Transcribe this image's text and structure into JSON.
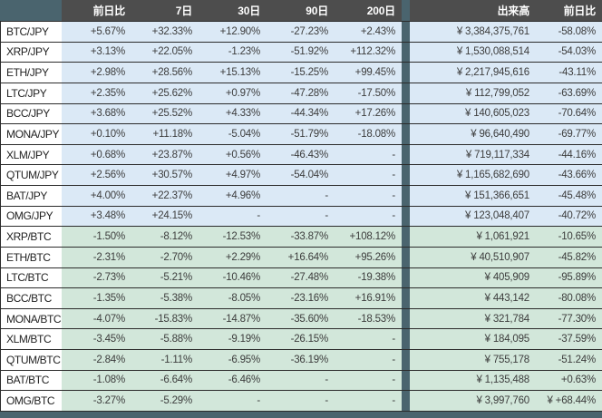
{
  "colors": {
    "header_bg": "#4d4d4d",
    "accent_teal": "#4a646e",
    "jpy_row_bg": "#dbe9f6",
    "btc_row_bg": "#d2e7da",
    "pair_cell_bg": "#ffffff",
    "row_border": "#2b2b2b",
    "header_text": "#ffffff",
    "value_text": "#3c3c3c"
  },
  "table": {
    "columns": [
      "",
      "前日比",
      "7日",
      "30日",
      "90日",
      "200日",
      "出来高",
      "前日比"
    ],
    "rows": [
      {
        "pair": "BTC/JPY",
        "group": "jpy",
        "cells": [
          "+5.67%",
          "+32.33%",
          "+12.90%",
          "-27.23%",
          "+2.43%",
          "¥ 3,384,375,761",
          "-58.08%"
        ]
      },
      {
        "pair": "XRP/JPY",
        "group": "jpy",
        "cells": [
          "+3.13%",
          "+22.05%",
          "-1.23%",
          "-51.92%",
          "+112.32%",
          "¥ 1,530,088,514",
          "-54.03%"
        ]
      },
      {
        "pair": "ETH/JPY",
        "group": "jpy",
        "cells": [
          "+2.98%",
          "+28.56%",
          "+15.13%",
          "-15.25%",
          "+99.45%",
          "¥ 2,217,945,616",
          "-43.11%"
        ]
      },
      {
        "pair": "LTC/JPY",
        "group": "jpy",
        "cells": [
          "+2.35%",
          "+25.62%",
          "+0.97%",
          "-47.28%",
          "-17.50%",
          "¥ 112,799,052",
          "-63.69%"
        ]
      },
      {
        "pair": "BCC/JPY",
        "group": "jpy",
        "cells": [
          "+3.68%",
          "+25.52%",
          "+4.33%",
          "-44.34%",
          "+17.26%",
          "¥ 140,605,023",
          "-70.64%"
        ]
      },
      {
        "pair": "MONA/JPY",
        "group": "jpy",
        "cells": [
          "+0.10%",
          "+11.18%",
          "-5.04%",
          "-51.79%",
          "-18.08%",
          "¥ 96,640,490",
          "-69.77%"
        ]
      },
      {
        "pair": "XLM/JPY",
        "group": "jpy",
        "cells": [
          "+0.68%",
          "+23.87%",
          "+0.56%",
          "-46.43%",
          "-",
          "¥ 719,117,334",
          "-44.16%"
        ]
      },
      {
        "pair": "QTUM/JPY",
        "group": "jpy",
        "cells": [
          "+2.56%",
          "+30.57%",
          "+4.97%",
          "-54.04%",
          "-",
          "¥ 1,165,682,690",
          "-43.66%"
        ]
      },
      {
        "pair": "BAT/JPY",
        "group": "jpy",
        "cells": [
          "+4.00%",
          "+22.37%",
          "+4.96%",
          "-",
          "-",
          "¥ 151,366,651",
          "-45.48%"
        ]
      },
      {
        "pair": "OMG/JPY",
        "group": "jpy",
        "cells": [
          "+3.48%",
          "+24.15%",
          "-",
          "-",
          "-",
          "¥ 123,048,407",
          "-40.72%"
        ]
      },
      {
        "pair": "XRP/BTC",
        "group": "btc",
        "cells": [
          "-1.50%",
          "-8.12%",
          "-12.53%",
          "-33.87%",
          "+108.12%",
          "¥ 1,061,921",
          "-10.65%"
        ]
      },
      {
        "pair": "ETH/BTC",
        "group": "btc",
        "cells": [
          "-2.31%",
          "-2.70%",
          "+2.29%",
          "+16.64%",
          "+95.26%",
          "¥ 40,510,907",
          "-45.82%"
        ]
      },
      {
        "pair": "LTC/BTC",
        "group": "btc",
        "cells": [
          "-2.73%",
          "-5.21%",
          "-10.46%",
          "-27.48%",
          "-19.38%",
          "¥ 405,909",
          "-95.89%"
        ]
      },
      {
        "pair": "BCC/BTC",
        "group": "btc",
        "cells": [
          "-1.35%",
          "-5.38%",
          "-8.05%",
          "-23.16%",
          "+16.91%",
          "¥ 443,142",
          "-80.08%"
        ]
      },
      {
        "pair": "MONA/BTC",
        "group": "btc",
        "cells": [
          "-4.07%",
          "-15.83%",
          "-14.87%",
          "-35.60%",
          "-18.53%",
          "¥ 321,784",
          "-77.30%"
        ]
      },
      {
        "pair": "XLM/BTC",
        "group": "btc",
        "cells": [
          "-3.45%",
          "-5.88%",
          "-9.19%",
          "-26.15%",
          "-",
          "¥ 184,095",
          "-37.59%"
        ]
      },
      {
        "pair": "QTUM/BTC",
        "group": "btc",
        "cells": [
          "-2.84%",
          "-1.11%",
          "-6.95%",
          "-36.19%",
          "-",
          "¥ 755,178",
          "-51.24%"
        ]
      },
      {
        "pair": "BAT/BTC",
        "group": "btc",
        "cells": [
          "-1.08%",
          "-6.64%",
          "-6.46%",
          "-",
          "-",
          "¥ 1,135,488",
          "+0.63%"
        ]
      },
      {
        "pair": "OMG/BTC",
        "group": "btc",
        "cells": [
          "-3.27%",
          "-5.29%",
          "-",
          "-",
          "-",
          "¥ 3,997,760",
          "¥ +68.44%"
        ]
      }
    ]
  }
}
